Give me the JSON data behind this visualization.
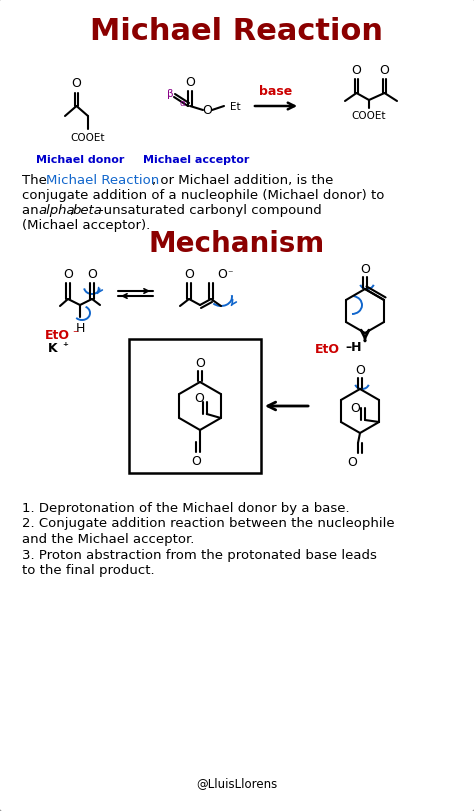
{
  "title": "Michael Reaction",
  "title_color": "#8B0000",
  "title_fontsize": 22,
  "bg_color": "#FFFFFF",
  "border_color": "#999999",
  "mechanism_title": "Mechanism",
  "mechanism_color": "#8B0000",
  "mechanism_fontsize": 20,
  "description_blue": "#1166CC",
  "description_fontsize": 9.5,
  "steps_fontsize": 9.5,
  "credit": "@LluisLlorens",
  "credit_fontsize": 8.5,
  "donor_label": "Michael donor",
  "acceptor_label": "Michael acceptor",
  "label_color": "#0000CC",
  "base_label": "base",
  "base_color": "#CC0000",
  "red_color": "#CC0000",
  "blue_color": "#1166CC",
  "black": "#000000"
}
